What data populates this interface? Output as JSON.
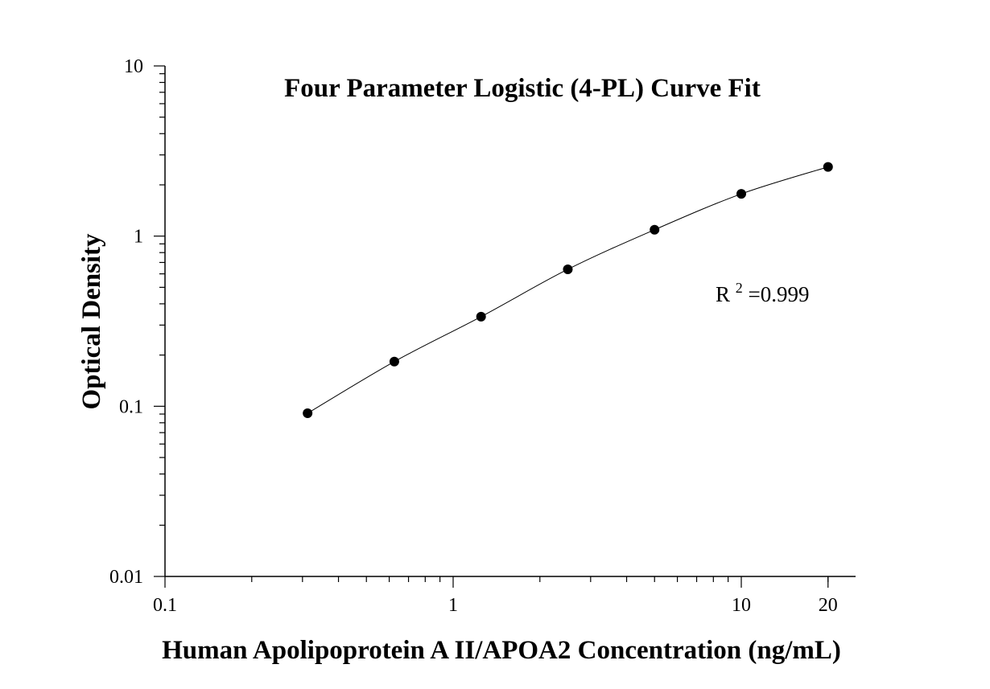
{
  "chart_data": {
    "type": "scatter",
    "title": "Four Parameter Logistic (4-PL) Curve Fit",
    "xlabel": "Human Apolipoprotein A II/APOA2 Concentration (ng/mL)",
    "ylabel": "Optical Density",
    "xscale": "log",
    "yscale": "log",
    "xlim": [
      0.1,
      25
    ],
    "ylim": [
      0.01,
      10
    ],
    "x_tick_labels": [
      "0.1",
      "1",
      "10",
      "20"
    ],
    "x_tick_values": [
      0.1,
      1,
      10,
      20
    ],
    "y_tick_labels": [
      "0.01",
      "0.1",
      "1",
      "10"
    ],
    "y_tick_values": [
      0.01,
      0.1,
      1,
      10
    ],
    "grid": false,
    "series": [
      {
        "x": [
          0.3125,
          0.625,
          1.25,
          2.5,
          5,
          10,
          20
        ],
        "y": [
          0.091,
          0.183,
          0.336,
          0.638,
          1.09,
          1.77,
          2.55
        ],
        "color": "#000000",
        "marker": "circle",
        "fit_line": "4-PL curve"
      }
    ],
    "annotation": {
      "label": "R",
      "superscript": "2",
      "value": "=0.999"
    }
  }
}
